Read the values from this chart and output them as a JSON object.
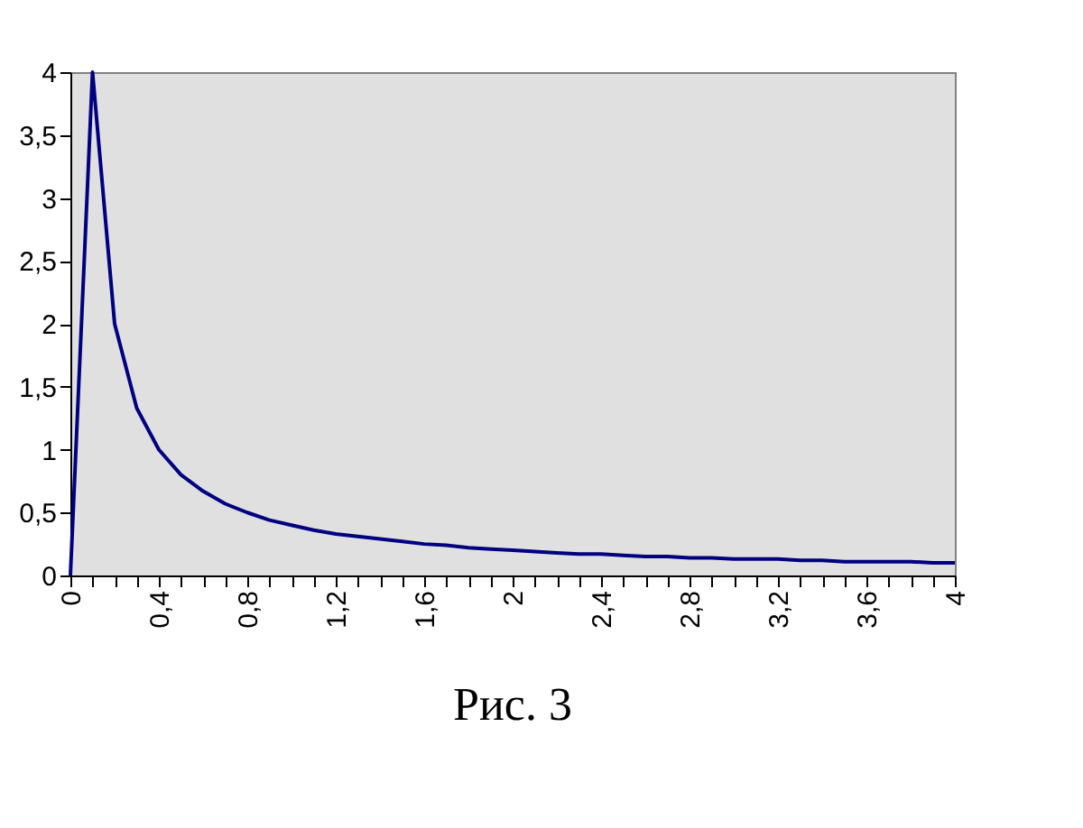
{
  "chart_data": {
    "type": "line",
    "x": [
      0,
      0.1,
      0.2,
      0.3,
      0.4,
      0.5,
      0.6,
      0.7,
      0.8,
      0.9,
      1,
      1.1,
      1.2,
      1.3,
      1.4,
      1.5,
      1.6,
      1.7,
      1.8,
      1.9,
      2,
      2.1,
      2.2,
      2.3,
      2.4,
      2.5,
      2.6,
      2.7,
      2.8,
      2.9,
      3,
      3.1,
      3.2,
      3.3,
      3.4,
      3.5,
      3.6,
      3.7,
      3.8,
      3.9,
      4
    ],
    "series": [
      {
        "color": "#000080",
        "values": [
          0,
          4,
          2,
          1.33,
          1,
          0.8,
          0.67,
          0.57,
          0.5,
          0.44,
          0.4,
          0.36,
          0.33,
          0.31,
          0.29,
          0.27,
          0.25,
          0.24,
          0.22,
          0.21,
          0.2,
          0.19,
          0.18,
          0.17,
          0.17,
          0.16,
          0.15,
          0.15,
          0.14,
          0.14,
          0.13,
          0.13,
          0.13,
          0.12,
          0.12,
          0.11,
          0.11,
          0.11,
          0.11,
          0.1,
          0.1
        ]
      }
    ],
    "xlim": [
      0,
      4
    ],
    "xticks": [
      {
        "value": 0,
        "label": "0"
      },
      {
        "value": 0.1,
        "label": null
      },
      {
        "value": 0.2,
        "label": null
      },
      {
        "value": 0.3,
        "label": null
      },
      {
        "value": 0.4,
        "label": "0,4"
      },
      {
        "value": 0.5,
        "label": null
      },
      {
        "value": 0.6,
        "label": null
      },
      {
        "value": 0.7,
        "label": null
      },
      {
        "value": 0.8,
        "label": "0,8"
      },
      {
        "value": 0.9,
        "label": null
      },
      {
        "value": 1,
        "label": null
      },
      {
        "value": 1.1,
        "label": null
      },
      {
        "value": 1.2,
        "label": "1,2"
      },
      {
        "value": 1.3,
        "label": null
      },
      {
        "value": 1.4,
        "label": null
      },
      {
        "value": 1.5,
        "label": null
      },
      {
        "value": 1.6,
        "label": "1,6"
      },
      {
        "value": 1.7,
        "label": null
      },
      {
        "value": 1.8,
        "label": null
      },
      {
        "value": 1.9,
        "label": null
      },
      {
        "value": 2,
        "label": "2"
      },
      {
        "value": 2.1,
        "label": null
      },
      {
        "value": 2.2,
        "label": null
      },
      {
        "value": 2.3,
        "label": null
      },
      {
        "value": 2.4,
        "label": "2,4"
      },
      {
        "value": 2.5,
        "label": null
      },
      {
        "value": 2.6,
        "label": null
      },
      {
        "value": 2.7,
        "label": null
      },
      {
        "value": 2.8,
        "label": "2,8"
      },
      {
        "value": 2.9,
        "label": null
      },
      {
        "value": 3,
        "label": null
      },
      {
        "value": 3.1,
        "label": null
      },
      {
        "value": 3.2,
        "label": "3,2"
      },
      {
        "value": 3.3,
        "label": null
      },
      {
        "value": 3.4,
        "label": null
      },
      {
        "value": 3.5,
        "label": null
      },
      {
        "value": 3.6,
        "label": "3,6"
      },
      {
        "value": 3.7,
        "label": null
      },
      {
        "value": 3.8,
        "label": null
      },
      {
        "value": 3.9,
        "label": null
      },
      {
        "value": 4,
        "label": "4"
      }
    ],
    "ylim": [
      0,
      4
    ],
    "yticks": [
      0,
      {
        "value": 0.5,
        "label": "0,5"
      },
      1,
      {
        "value": 1.5,
        "label": "1,5"
      },
      2,
      {
        "value": 2.5,
        "label": "2,5"
      },
      3,
      {
        "value": 3.5,
        "label": "3,5"
      },
      4
    ],
    "grid": false,
    "marker": "none",
    "line_style": "solid",
    "annotations": [
      "Рис. 3"
    ]
  }
}
